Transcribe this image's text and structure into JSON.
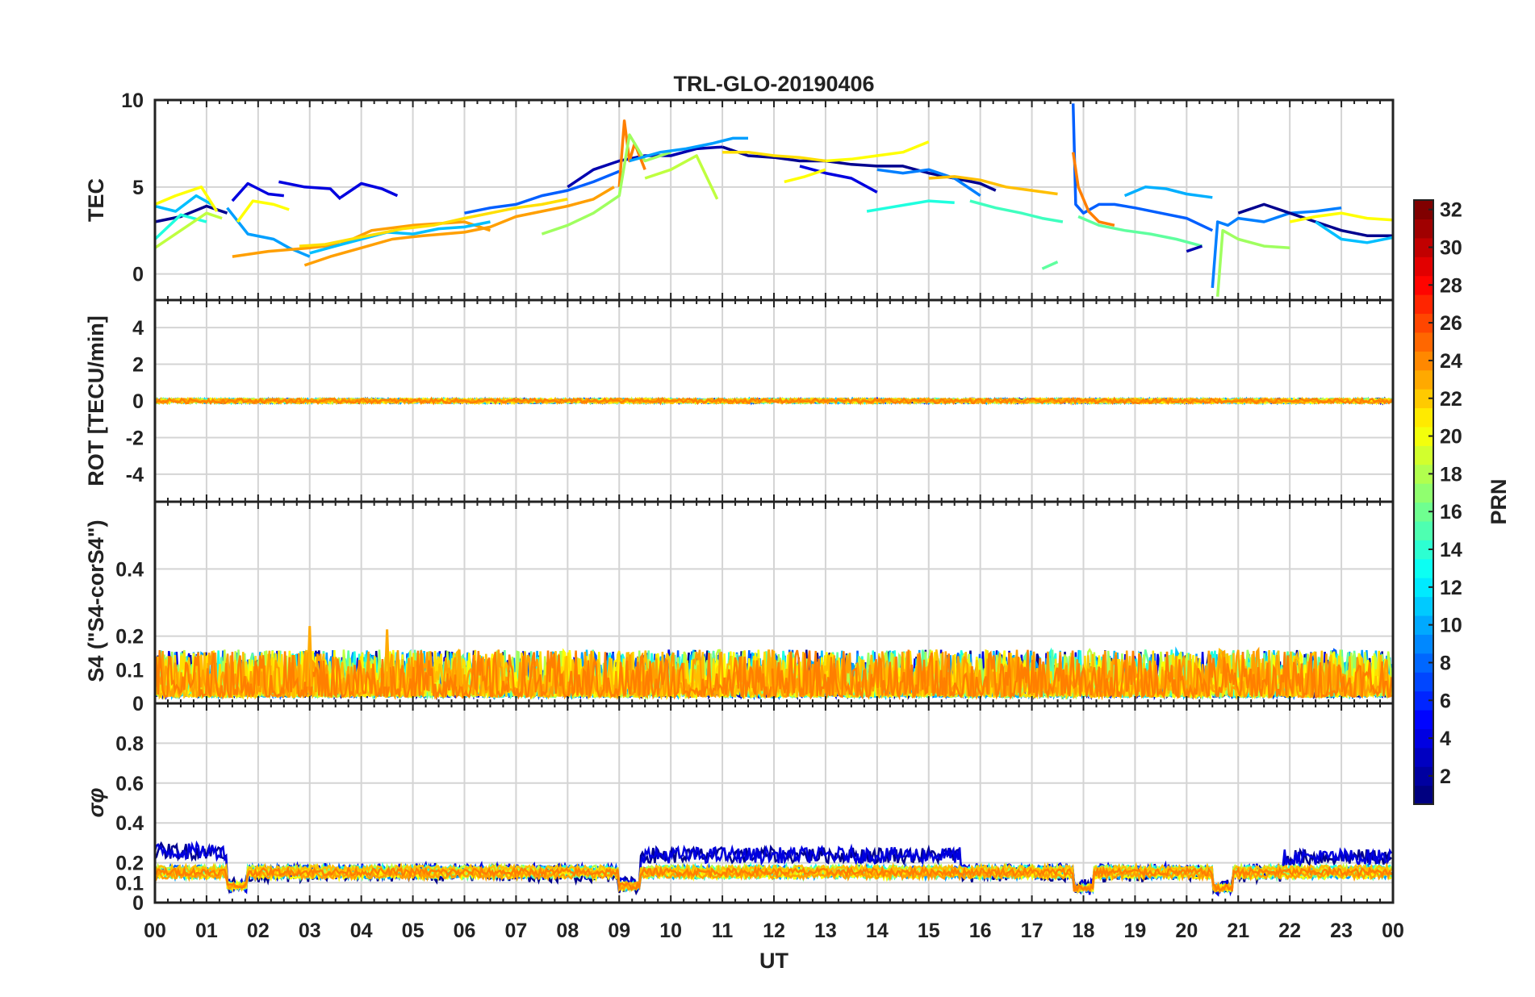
{
  "chart_data": {
    "type": "line",
    "title": "TRL-GLO-20190406",
    "xlabel": "UT",
    "x_ticks": [
      "00",
      "01",
      "02",
      "03",
      "04",
      "05",
      "06",
      "07",
      "08",
      "09",
      "10",
      "11",
      "12",
      "13",
      "14",
      "15",
      "16",
      "17",
      "18",
      "19",
      "20",
      "21",
      "22",
      "23",
      "00"
    ],
    "xlim": [
      0,
      24
    ],
    "colorbar": {
      "label": "PRN",
      "range": [
        1,
        32
      ],
      "ticks": [
        "2",
        "4",
        "6",
        "8",
        "10",
        "12",
        "14",
        "16",
        "18",
        "20",
        "22",
        "24",
        "26",
        "28",
        "30",
        "32"
      ],
      "colormap": "jet"
    },
    "panels": [
      {
        "id": "tec",
        "ylabel": "TEC",
        "ylim": [
          -1.5,
          10
        ],
        "yticks": [
          "0",
          "5",
          "10"
        ],
        "series": [
          {
            "prn": 1,
            "color": "#00008f",
            "x": [
              0,
              0.5,
              1.0,
              1.4
            ],
            "y": [
              3.0,
              3.3,
              3.9,
              3.5
            ]
          },
          {
            "prn": 3,
            "color": "#0000df",
            "x": [
              1.5,
              1.8,
              2.2,
              2.5
            ],
            "y": [
              4.2,
              5.2,
              4.6,
              4.5
            ]
          },
          {
            "prn": 3,
            "color": "#0000df",
            "x": [
              2.4,
              2.9,
              3.4,
              3.6
            ],
            "y": [
              5.3,
              5.0,
              4.9,
              4.3
            ]
          },
          {
            "prn": 3,
            "color": "#0000df",
            "x": [
              3.6,
              4.0,
              4.4,
              4.7
            ],
            "y": [
              4.4,
              5.2,
              4.9,
              4.5
            ]
          },
          {
            "prn": 12,
            "color": "#00bfff",
            "x": [
              0,
              0.4,
              0.8,
              1.1
            ],
            "y": [
              3.9,
              3.6,
              4.5,
              4.0
            ]
          },
          {
            "prn": 14,
            "color": "#1fffdf",
            "x": [
              0,
              0.5,
              1.0
            ],
            "y": [
              2.0,
              3.4,
              3.0
            ]
          },
          {
            "prn": 20,
            "color": "#ffff00",
            "x": [
              0,
              0.4,
              0.9,
              1.2
            ],
            "y": [
              4.0,
              4.5,
              5.0,
              3.6
            ]
          },
          {
            "prn": 18,
            "color": "#bfff3f",
            "x": [
              0,
              0.5,
              1.0,
              1.3
            ],
            "y": [
              1.5,
              2.5,
              3.5,
              3.2
            ]
          },
          {
            "prn": 11,
            "color": "#009fff",
            "x": [
              1.4,
              1.8,
              2.3,
              2.6,
              3.0
            ],
            "y": [
              3.8,
              2.3,
              2.0,
              1.5,
              1.0
            ]
          },
          {
            "prn": 20,
            "color": "#ffff00",
            "x": [
              1.6,
              1.9,
              2.3,
              2.6
            ],
            "y": [
              3.0,
              4.2,
              4.0,
              3.7
            ]
          },
          {
            "prn": 23,
            "color": "#ff9f00",
            "x": [
              1.5,
              2.2,
              3.0,
              3.6,
              4.2,
              5.0,
              6.0,
              6.5
            ],
            "y": [
              1.0,
              1.3,
              1.5,
              1.7,
              2.5,
              2.8,
              3.0,
              2.5
            ]
          },
          {
            "prn": 23,
            "color": "#ff9f00",
            "x": [
              2.9,
              3.4,
              4.0,
              4.6,
              5.2,
              6.0,
              6.5,
              7.0,
              7.5,
              8.0,
              8.5,
              8.9
            ],
            "y": [
              0.5,
              1.0,
              1.5,
              2.0,
              2.2,
              2.4,
              2.7,
              3.3,
              3.6,
              3.9,
              4.3,
              5.0
            ]
          },
          {
            "prn": 12,
            "color": "#00bfff",
            "x": [
              3.0,
              3.5,
              4.0,
              4.5,
              5.0,
              5.5,
              6.0,
              6.5
            ],
            "y": [
              1.2,
              1.6,
              2.0,
              2.4,
              2.3,
              2.6,
              2.7,
              3.0
            ]
          },
          {
            "prn": 21,
            "color": "#ffdf00",
            "x": [
              2.8,
              3.3,
              3.8,
              4.3,
              4.8,
              5.4,
              6.0,
              6.5,
              7.0,
              7.5,
              8.0
            ],
            "y": [
              1.6,
              1.7,
              2.0,
              2.3,
              2.6,
              2.8,
              3.2,
              3.5,
              3.8,
              4.0,
              4.3
            ]
          },
          {
            "prn": 6,
            "color": "#005fff",
            "x": [
              6.0,
              6.5,
              7.0,
              7.5,
              8.0,
              8.5,
              9.0
            ],
            "y": [
              3.5,
              3.8,
              4.0,
              4.5,
              4.8,
              5.3,
              5.9
            ]
          },
          {
            "prn": 2,
            "color": "#0000af",
            "x": [
              8.0,
              8.5,
              9.0,
              9.5,
              10.0,
              10.5,
              11.0
            ],
            "y": [
              5.0,
              6.0,
              6.5,
              6.8,
              6.8,
              7.2,
              7.3
            ]
          },
          {
            "prn": 24,
            "color": "#ff7f00",
            "x": [
              9.0,
              9.1,
              9.2,
              9.3,
              9.5
            ],
            "y": [
              5.0,
              8.8,
              6.5,
              7.5,
              6.0
            ]
          },
          {
            "prn": 17,
            "color": "#9fff5f",
            "x": [
              7.5,
              8.0,
              8.5,
              9.0,
              9.2,
              9.5,
              10.0
            ],
            "y": [
              2.3,
              2.8,
              3.5,
              4.5,
              8.0,
              6.5,
              7.0
            ]
          },
          {
            "prn": 18,
            "color": "#bfff3f",
            "x": [
              9.5,
              10.0,
              10.5,
              10.9
            ],
            "y": [
              5.5,
              6.0,
              6.8,
              4.3
            ]
          },
          {
            "prn": 11,
            "color": "#009fff",
            "x": [
              9.2,
              9.8,
              10.3,
              10.8,
              11.2,
              11.5
            ],
            "y": [
              6.5,
              7.0,
              7.2,
              7.5,
              7.8,
              7.8
            ]
          },
          {
            "prn": 1,
            "color": "#00008f",
            "x": [
              11.0,
              11.5,
              12.0,
              12.5,
              13.0,
              13.5,
              14.0,
              14.5,
              15.0,
              15.5,
              16.0,
              16.3
            ],
            "y": [
              7.3,
              6.8,
              6.7,
              6.5,
              6.5,
              6.3,
              6.2,
              6.2,
              5.8,
              5.5,
              5.2,
              4.8
            ]
          },
          {
            "prn": 21,
            "color": "#ffdf00",
            "x": [
              11.0,
              11.5,
              12.0,
              12.5,
              13.0
            ],
            "y": [
              7.0,
              7.0,
              6.8,
              6.7,
              6.5
            ]
          },
          {
            "prn": 3,
            "color": "#0000df",
            "x": [
              12.5,
              13.0,
              13.5,
              14.0
            ],
            "y": [
              6.2,
              5.8,
              5.5,
              4.7
            ]
          },
          {
            "prn": 20,
            "color": "#ffff00",
            "x": [
              13.0,
              13.5,
              14.0,
              14.5,
              15.0
            ],
            "y": [
              6.5,
              6.6,
              6.8,
              7.0,
              7.6
            ]
          },
          {
            "prn": 20,
            "color": "#ffff00",
            "x": [
              12.2,
              12.6,
              13.0
            ],
            "y": [
              5.3,
              5.6,
              6.0
            ]
          },
          {
            "prn": 14,
            "color": "#1fffdf",
            "x": [
              13.8,
              14.2,
              14.6,
              15.0,
              15.5
            ],
            "y": [
              3.6,
              3.8,
              4.0,
              4.2,
              4.1
            ]
          },
          {
            "prn": 7,
            "color": "#007fff",
            "x": [
              14.0,
              14.5,
              15.0,
              15.5,
              16.0
            ],
            "y": [
              6.0,
              5.8,
              6.0,
              5.5,
              4.5
            ]
          },
          {
            "prn": 22,
            "color": "#ffbf00",
            "x": [
              15.0,
              15.5,
              16.0,
              16.5,
              17.0,
              17.5
            ],
            "y": [
              5.5,
              5.6,
              5.4,
              5.0,
              4.8,
              4.6
            ]
          },
          {
            "prn": 15,
            "color": "#3fffbf",
            "x": [
              15.8,
              16.3,
              16.8,
              17.2,
              17.6
            ],
            "y": [
              4.2,
              3.8,
              3.5,
              3.2,
              3.0
            ]
          },
          {
            "prn": 16,
            "color": "#5fff9f",
            "x": [
              17.2,
              17.5
            ],
            "y": [
              0.3,
              0.7
            ]
          },
          {
            "prn": 6,
            "color": "#005fff",
            "x": [
              17.8,
              17.85,
              18.0,
              18.3,
              18.6,
              19.0,
              19.5,
              20.0,
              20.5
            ],
            "y": [
              9.8,
              4.0,
              3.5,
              4.0,
              4.0,
              3.8,
              3.5,
              3.2,
              2.5
            ]
          },
          {
            "prn": 24,
            "color": "#ff7f00",
            "x": [
              17.8,
              17.9,
              18.1,
              18.3,
              18.6
            ],
            "y": [
              7.0,
              5.0,
              3.6,
              3.0,
              2.8
            ]
          },
          {
            "prn": 16,
            "color": "#5fff9f",
            "x": [
              17.9,
              18.3,
              18.8,
              19.3,
              19.8,
              20.3
            ],
            "y": [
              3.3,
              2.8,
              2.5,
              2.3,
              2.0,
              1.6
            ]
          },
          {
            "prn": 9,
            "color": "#00afff",
            "x": [
              18.8,
              19.2,
              19.6,
              20.0,
              20.5
            ],
            "y": [
              4.5,
              5.0,
              4.9,
              4.6,
              4.4
            ]
          },
          {
            "prn": 2,
            "color": "#0000af",
            "x": [
              20.0,
              20.3
            ],
            "y": [
              1.3,
              1.6
            ]
          },
          {
            "prn": 7,
            "color": "#007fff",
            "x": [
              20.5,
              20.6,
              20.8,
              21.0,
              21.5,
              22.0,
              22.5,
              23.0
            ],
            "y": [
              -0.8,
              3.0,
              2.8,
              3.2,
              3.0,
              3.5,
              3.6,
              3.8
            ]
          },
          {
            "prn": 17,
            "color": "#9fff5f",
            "x": [
              20.6,
              20.7,
              21.0,
              21.5,
              22.0
            ],
            "y": [
              -1.3,
              2.5,
              2.0,
              1.6,
              1.5
            ]
          },
          {
            "prn": 1,
            "color": "#00008f",
            "x": [
              21.0,
              21.5,
              22.0,
              22.5,
              23.0,
              23.5,
              24.0
            ],
            "y": [
              3.5,
              4.0,
              3.5,
              3.0,
              2.5,
              2.2,
              2.2
            ]
          },
          {
            "prn": 12,
            "color": "#00bfff",
            "x": [
              22.5,
              23.0,
              23.5,
              24.0
            ],
            "y": [
              3.0,
              2.0,
              1.8,
              2.1
            ]
          },
          {
            "prn": 20,
            "color": "#ffff00",
            "x": [
              22.0,
              22.5,
              23.0,
              23.5,
              24.0
            ],
            "y": [
              3.0,
              3.3,
              3.5,
              3.2,
              3.1
            ]
          }
        ]
      },
      {
        "id": "rot",
        "ylabel": "ROT [TECU/min]",
        "ylim": [
          -5.5,
          5.5
        ],
        "yticks": [
          "-4",
          "-2",
          "0",
          "2",
          "4"
        ],
        "baseline": 0,
        "noise_amplitude": 0.25
      },
      {
        "id": "s4",
        "ylabel": "S4 (\"S4-corS4\")",
        "ylim": [
          0,
          0.6
        ],
        "yticks": [
          "0",
          "0.1",
          "0.2",
          "0.4"
        ],
        "typical_range": [
          0.02,
          0.16
        ],
        "peaks": [
          {
            "x": 3.0,
            "y": 0.23
          },
          {
            "x": 4.5,
            "y": 0.22
          },
          {
            "x": 5.9,
            "y": 0.16
          },
          {
            "x": 11.9,
            "y": 0.16
          }
        ]
      },
      {
        "id": "sigma_phi",
        "ylabel": "σφ",
        "ylim": [
          0,
          1
        ],
        "yticks": [
          "0",
          "0.1",
          "0.2",
          "0.4",
          "0.6",
          "0.8"
        ],
        "typical_level": 0.15,
        "elevated_periods": [
          {
            "x0": 0,
            "x1": 1.4,
            "level": 0.25
          },
          {
            "x0": 9.4,
            "x1": 15.6,
            "level": 0.23
          },
          {
            "x0": 21.9,
            "x1": 24,
            "level": 0.22
          }
        ],
        "dips": [
          {
            "x0": 1.4,
            "x1": 1.8,
            "level": 0.08
          },
          {
            "x0": 9.0,
            "x1": 9.4,
            "level": 0.08
          },
          {
            "x0": 17.8,
            "x1": 18.2,
            "level": 0.07
          },
          {
            "x0": 20.5,
            "x1": 20.9,
            "level": 0.07
          }
        ]
      }
    ]
  }
}
